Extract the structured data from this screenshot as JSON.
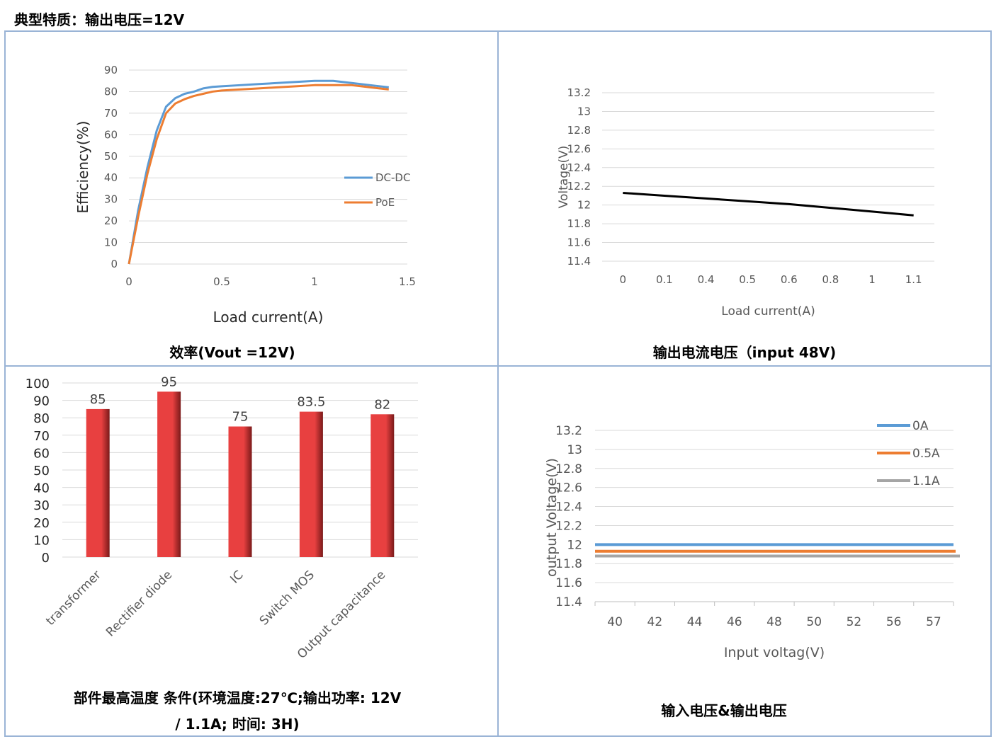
{
  "page_title": "典型特质：输出电压=12V",
  "captions": {
    "efficiency": "效率(Vout =12V)",
    "voltage": "输出电流电压（input 48V)",
    "temperature_line1": "部件最高温度  条件(环境温度:27℃;输出功率: 12V",
    "temperature_line2": "/ 1.1A;  时间: 3H)",
    "in_out": "输入电压&输出电压"
  },
  "chart_data": [
    {
      "id": "efficiency",
      "type": "line",
      "title": "",
      "xlabel": "Load current(A)",
      "ylabel": "Efficiency(%)",
      "xlim": [
        0,
        1.5
      ],
      "ylim": [
        0,
        90
      ],
      "x_ticks": [
        "0",
        "0.5",
        "1",
        "1.5"
      ],
      "y_ticks": [
        "0",
        "10",
        "20",
        "30",
        "40",
        "50",
        "60",
        "70",
        "80",
        "90"
      ],
      "legend_position": "right",
      "series": [
        {
          "name": "DC-DC",
          "color": "#5b9bd5",
          "x": [
            0,
            0.05,
            0.1,
            0.15,
            0.2,
            0.25,
            0.3,
            0.35,
            0.4,
            0.45,
            0.5,
            0.6,
            0.7,
            0.8,
            0.9,
            1.0,
            1.1,
            1.2,
            1.3,
            1.4
          ],
          "y": [
            0,
            25,
            45,
            62,
            73,
            77,
            79,
            80,
            81.5,
            82.2,
            82.5,
            83,
            83.5,
            84,
            84.5,
            85,
            85,
            84,
            83,
            82
          ]
        },
        {
          "name": "PoE",
          "color": "#ed7d31",
          "x": [
            0,
            0.05,
            0.1,
            0.15,
            0.2,
            0.25,
            0.3,
            0.35,
            0.4,
            0.45,
            0.5,
            0.6,
            0.7,
            0.8,
            0.9,
            1.0,
            1.1,
            1.2,
            1.3,
            1.4
          ],
          "y": [
            0,
            22,
            42,
            58,
            70,
            74.5,
            76.5,
            78,
            79,
            80,
            80.5,
            81,
            81.5,
            82,
            82.5,
            83,
            83,
            83,
            82,
            81
          ]
        }
      ]
    },
    {
      "id": "voltage",
      "type": "line",
      "title": "",
      "xlabel": "Load current(A)",
      "ylabel": "Voltage(V)",
      "ylim": [
        11.4,
        13.2
      ],
      "categories": [
        "0",
        "0.1",
        "0.4",
        "0.5",
        "0.6",
        "0.8",
        "1",
        "1.1"
      ],
      "y_ticks": [
        "11.4",
        "11.6",
        "11.8",
        "12",
        "12.2",
        "12.4",
        "12.6",
        "12.8",
        "13",
        "13.2"
      ],
      "series": [
        {
          "color": "#000000",
          "values": [
            12.13,
            12.1,
            12.07,
            12.04,
            12.01,
            11.97,
            11.93,
            11.89
          ]
        }
      ]
    },
    {
      "id": "temperature",
      "type": "bar",
      "title": "",
      "ylim": [
        0,
        100
      ],
      "y_ticks": [
        "0",
        "10",
        "20",
        "30",
        "40",
        "50",
        "60",
        "70",
        "80",
        "90",
        "100"
      ],
      "categories": [
        "transformer",
        "Rectifier diode",
        "IC",
        "Switch MOS",
        "Output capacitance"
      ],
      "values": [
        85,
        95,
        75,
        83.5,
        82
      ],
      "value_labels": [
        "85",
        "95",
        "75",
        "83.5",
        "82"
      ],
      "bar_color": "#e84040"
    },
    {
      "id": "in_out",
      "type": "line",
      "title": "",
      "xlabel": "Input voltag(V)",
      "ylabel": "output Voltage(V)",
      "ylim": [
        11.4,
        13.2
      ],
      "categories": [
        "40",
        "42",
        "44",
        "46",
        "48",
        "50",
        "52",
        "56",
        "57"
      ],
      "y_ticks": [
        "11.4",
        "11.6",
        "11.8",
        "12",
        "12.2",
        "12.4",
        "12.6",
        "12.8",
        "13",
        "13.2"
      ],
      "legend_position": "top-right",
      "series": [
        {
          "name": "0A",
          "color": "#5b9bd5",
          "values": [
            12.0,
            12.0,
            12.0,
            12.0,
            12.0,
            12.0,
            12.0,
            12.0,
            12.0
          ]
        },
        {
          "name": "0.5A",
          "color": "#ed7d31",
          "values": [
            11.93,
            11.93,
            11.93,
            11.93,
            11.93,
            11.93,
            11.93,
            11.93,
            11.93
          ]
        },
        {
          "name": "1.1A",
          "color": "#a5a5a5",
          "values": [
            11.88,
            11.88,
            11.88,
            11.88,
            11.88,
            11.88,
            11.88,
            11.88,
            11.88
          ]
        }
      ]
    }
  ]
}
